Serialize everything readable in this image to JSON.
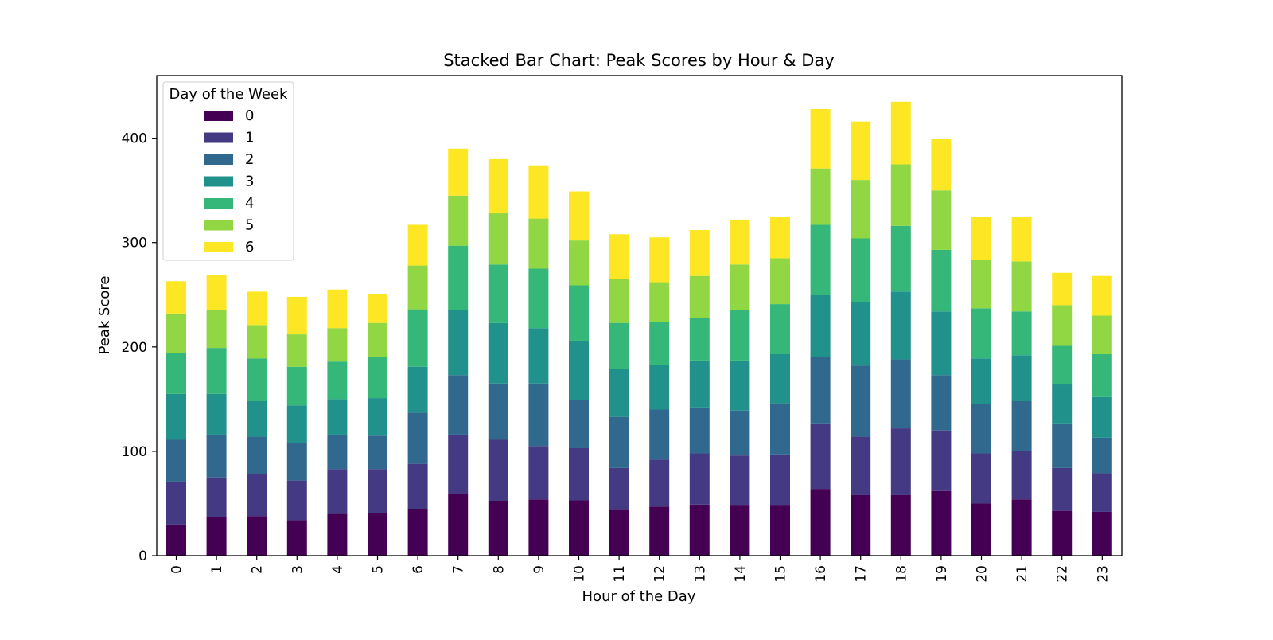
{
  "chart_data": {
    "type": "bar",
    "stacked": true,
    "title": "Stacked Bar Chart: Peak Scores by Hour & Day",
    "xlabel": "Hour of the Day",
    "ylabel": "Peak Score",
    "ylim": [
      0,
      460
    ],
    "yticks": [
      0,
      100,
      200,
      300,
      400
    ],
    "grid": false,
    "legend": {
      "title": "Day of the Week",
      "placement": "top-left"
    },
    "categories": [
      "0",
      "1",
      "2",
      "3",
      "4",
      "5",
      "6",
      "7",
      "8",
      "9",
      "10",
      "11",
      "12",
      "13",
      "14",
      "15",
      "16",
      "17",
      "18",
      "19",
      "20",
      "21",
      "22",
      "23"
    ],
    "series": [
      {
        "name": "0",
        "color": "#440154",
        "values": [
          30,
          37,
          38,
          34,
          40,
          41,
          45,
          59,
          52,
          54,
          53,
          44,
          47,
          49,
          48,
          48,
          64,
          58,
          58,
          62,
          50,
          54,
          43,
          42
        ]
      },
      {
        "name": "1",
        "color": "#443983",
        "values": [
          41,
          38,
          40,
          38,
          43,
          42,
          43,
          57,
          59,
          51,
          50,
          40,
          45,
          49,
          48,
          49,
          62,
          56,
          64,
          58,
          48,
          46,
          41,
          37
        ]
      },
      {
        "name": "2",
        "color": "#31688e",
        "values": [
          40,
          41,
          36,
          36,
          33,
          32,
          49,
          57,
          54,
          60,
          46,
          49,
          48,
          44,
          43,
          49,
          64,
          68,
          66,
          53,
          47,
          48,
          42,
          34
        ]
      },
      {
        "name": "3",
        "color": "#21918c",
        "values": [
          44,
          39,
          34,
          36,
          34,
          36,
          44,
          62,
          58,
          53,
          57,
          46,
          43,
          45,
          48,
          47,
          60,
          61,
          65,
          61,
          44,
          44,
          38,
          39
        ]
      },
      {
        "name": "4",
        "color": "#35b779",
        "values": [
          39,
          44,
          41,
          37,
          36,
          39,
          55,
          62,
          56,
          57,
          53,
          44,
          41,
          41,
          48,
          48,
          67,
          61,
          63,
          59,
          48,
          42,
          37,
          41
        ]
      },
      {
        "name": "5",
        "color": "#90d743",
        "values": [
          38,
          36,
          32,
          31,
          32,
          33,
          42,
          48,
          49,
          48,
          43,
          42,
          38,
          40,
          44,
          44,
          54,
          56,
          59,
          57,
          46,
          48,
          39,
          37
        ]
      },
      {
        "name": "6",
        "color": "#fde725",
        "values": [
          31,
          34,
          32,
          36,
          37,
          28,
          39,
          45,
          52,
          51,
          47,
          43,
          43,
          44,
          43,
          40,
          57,
          56,
          60,
          49,
          42,
          43,
          31,
          38
        ]
      }
    ]
  }
}
